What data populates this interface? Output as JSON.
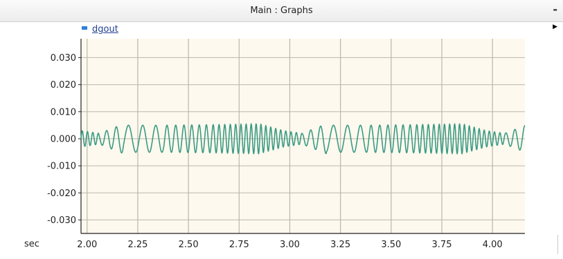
{
  "window": {
    "title": "Main : Graphs",
    "minimize_label": "-",
    "expand_label": "▶"
  },
  "legend": {
    "series_name": "dgout",
    "swatch_color": "#2f7fd9"
  },
  "colors": {
    "plot_background": "#fdf9ee",
    "line": "#3a9a84",
    "grid": "#b9b7ae"
  },
  "chart_data": {
    "type": "line",
    "title": "",
    "xlabel": "sec",
    "ylabel": "",
    "xlim": [
      1.97,
      4.16
    ],
    "ylim": [
      -0.035,
      0.037
    ],
    "x_ticks": [
      2.0,
      2.25,
      2.5,
      2.75,
      3.0,
      3.25,
      3.5,
      3.75,
      4.0
    ],
    "x_tick_labels": [
      "2.00",
      "2.25",
      "2.50",
      "2.75",
      "3.00",
      "3.25",
      "3.50",
      "3.75",
      "4.00"
    ],
    "y_ticks": [
      0.03,
      0.02,
      0.01,
      0.0,
      -0.01,
      -0.02,
      -0.03
    ],
    "y_tick_labels": [
      "0.030",
      "0.020",
      "0.010",
      "0.000",
      "-0.010",
      "-0.020",
      "-0.030"
    ],
    "grid": true,
    "legend_position": "top-left",
    "series": [
      {
        "name": "dgout",
        "period_sec": 1.0,
        "segments": [
          {
            "start": 1.97,
            "end": 2.06,
            "amplitude": [
              0.003,
              0.002
            ],
            "frequency_hz": [
              40,
              36
            ]
          },
          {
            "start": 2.06,
            "end": 2.18,
            "amplitude": [
              0.002,
              0.0055
            ],
            "frequency_hz": [
              24,
              18
            ]
          },
          {
            "start": 2.18,
            "end": 2.38,
            "amplitude": [
              0.005,
              0.005
            ],
            "frequency_hz": [
              13,
              17
            ]
          },
          {
            "start": 2.38,
            "end": 2.62,
            "amplitude": [
              0.005,
              0.0052
            ],
            "frequency_hz": [
              22,
              30
            ]
          },
          {
            "start": 2.62,
            "end": 2.85,
            "amplitude": [
              0.0052,
              0.0055
            ],
            "frequency_hz": [
              34,
              42
            ]
          },
          {
            "start": 2.85,
            "end": 2.97,
            "amplitude": [
              0.0055,
              0.003
            ],
            "frequency_hz": [
              42,
              40
            ]
          }
        ]
      }
    ]
  }
}
